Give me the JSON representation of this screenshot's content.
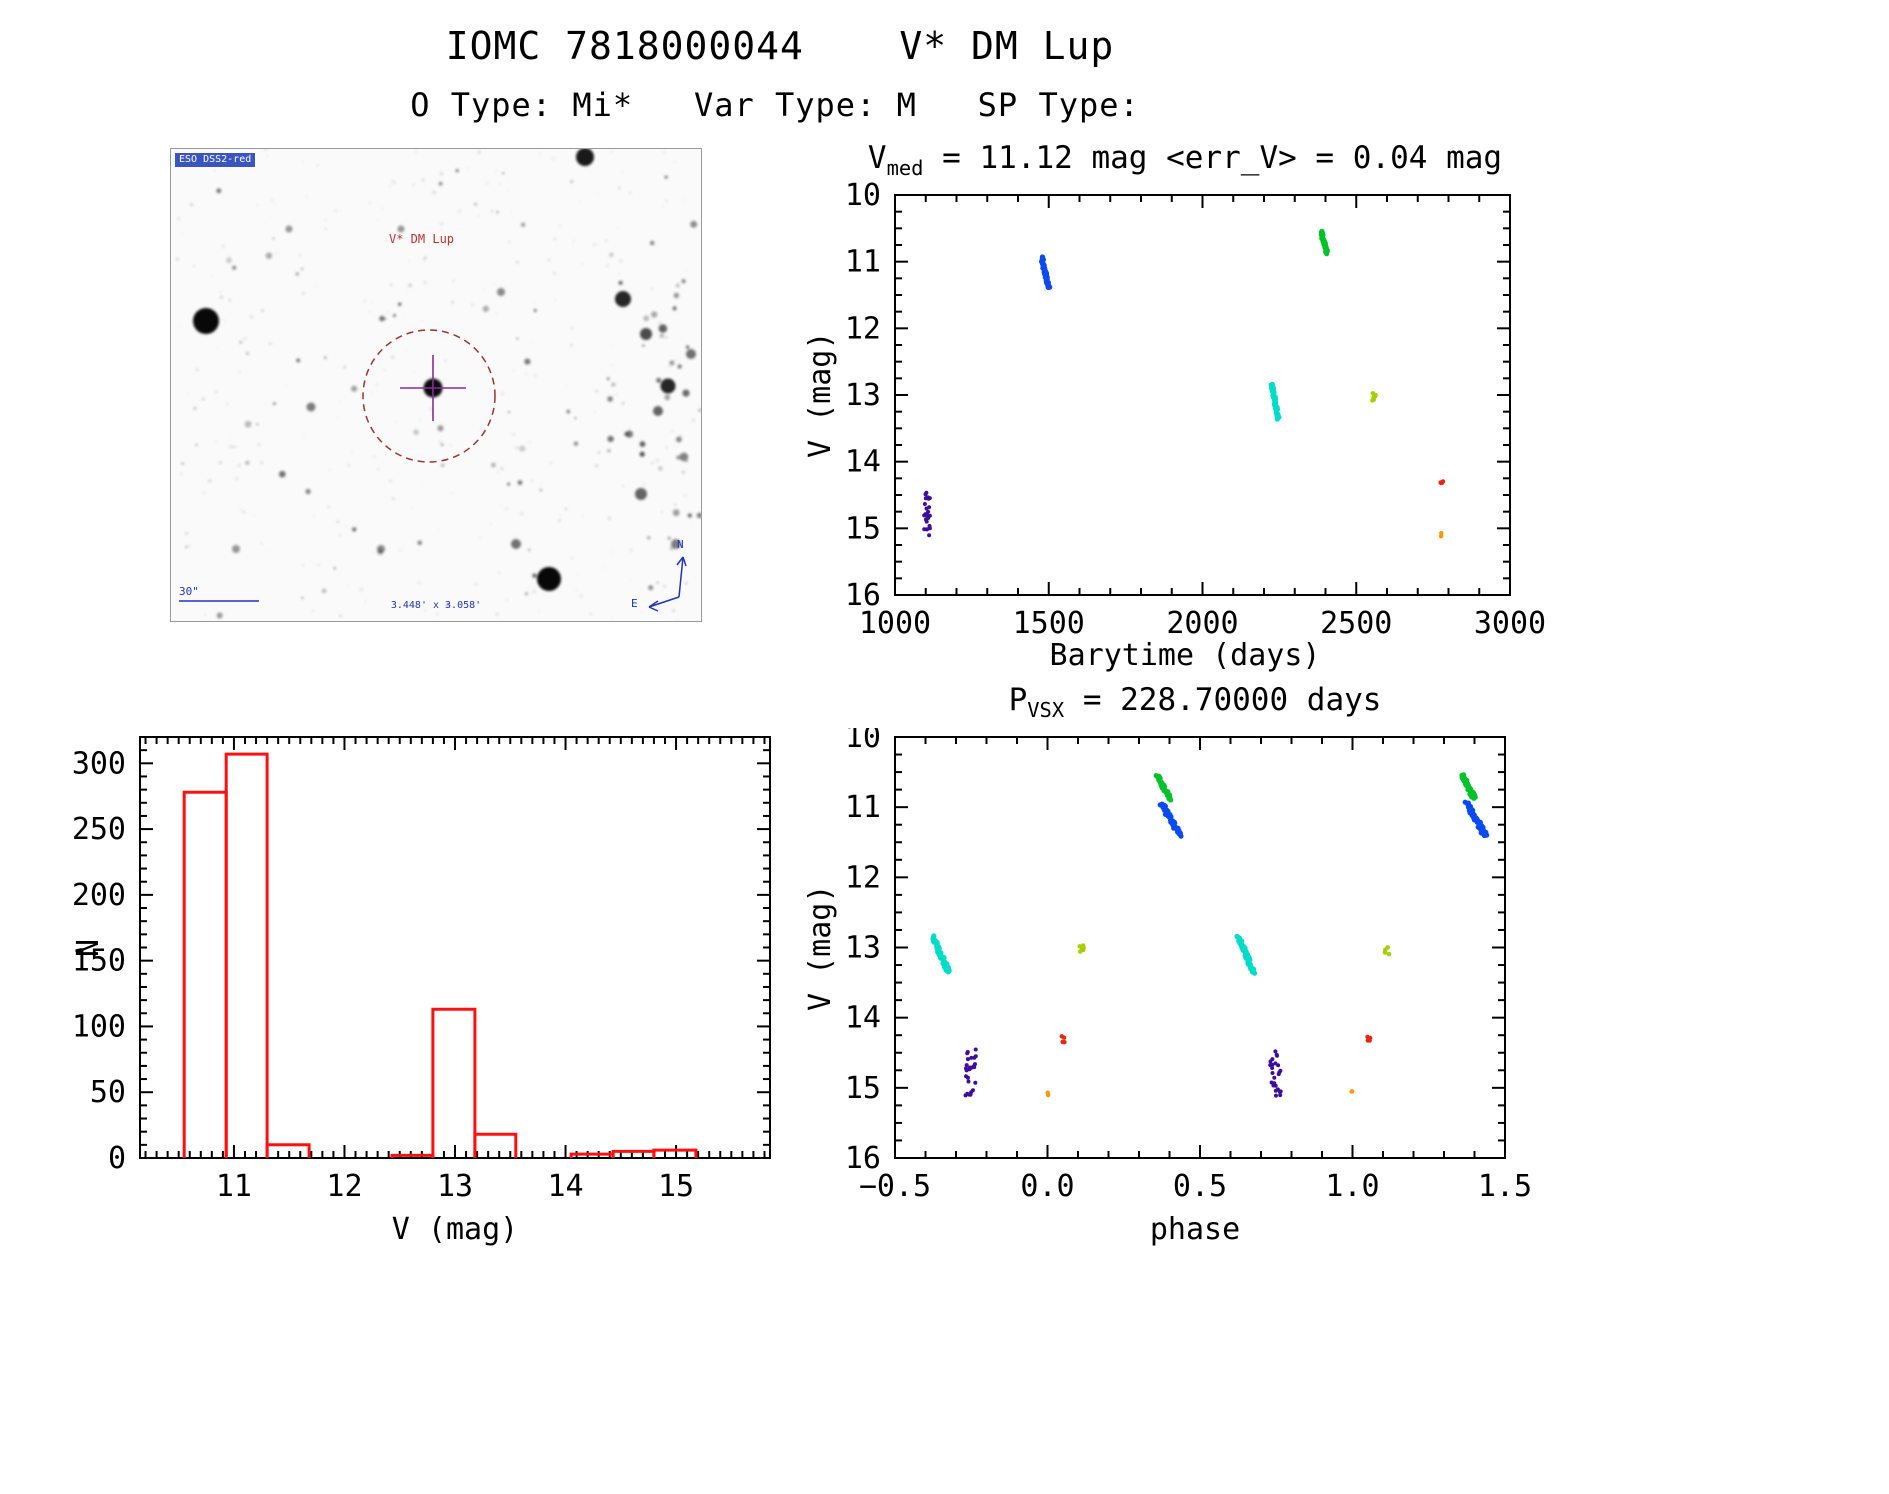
{
  "header": {
    "title": "IOMC 7818000044    V* DM Lup",
    "subtitle": "O Type: Mi*   Var Type: M   SP Type:"
  },
  "sky_image": {
    "survey_label": "ESO DSS2-red",
    "target_label": "V* DM Lup",
    "scale_label": "30\"",
    "fov_label": "3.448' x 3.058'",
    "compass_north": "N",
    "compass_east": "E"
  },
  "chart_data": [
    {
      "id": "lightcurve",
      "type": "scatter",
      "v_med_mag": 11.12,
      "err_v_mag": 0.04,
      "title_parts": [
        {
          "t": "V"
        },
        {
          "t": "med",
          "sub": true
        },
        {
          "t": " = 11.12 mag <err_V> = 0.04 mag"
        }
      ],
      "xlabel": "Barytime (days)",
      "ylabel": "V (mag)",
      "xlim": [
        1000,
        3000
      ],
      "ylim": [
        16,
        10
      ],
      "xticks": [
        1000,
        1500,
        2000,
        2500,
        3000
      ],
      "xtick_labels": [
        "1000",
        "1500",
        "2000",
        "2500",
        "3000"
      ],
      "yticks": [
        10,
        11,
        12,
        13,
        14,
        15,
        16
      ],
      "ytick_labels": [
        "10",
        "11",
        "12",
        "13",
        "14",
        "15",
        "16"
      ],
      "xminor": 100,
      "yminor": 0.25,
      "clusters": [
        {
          "label": "epoch-1-violet",
          "color": "#3d0e9b",
          "mode": "scatter",
          "x": [
            1093,
            1117
          ],
          "v": [
            14.45,
            15.12
          ],
          "n": 26,
          "dot": 2.0
        },
        {
          "label": "epoch-2-blue",
          "color": "#0b4bee",
          "mode": "streak",
          "x": [
            1478,
            1500
          ],
          "v": [
            10.95,
            11.4
          ],
          "n": 60,
          "dot": 2.6,
          "jx": 7,
          "jv": 0.05
        },
        {
          "label": "epoch-3-cyan",
          "color": "#00dcc8",
          "mode": "streak",
          "x": [
            2226,
            2246
          ],
          "v": [
            12.85,
            13.35
          ],
          "n": 55,
          "dot": 2.6,
          "jx": 6,
          "jv": 0.05
        },
        {
          "label": "epoch-4-green",
          "color": "#00c32a",
          "mode": "streak",
          "x": [
            2386,
            2406
          ],
          "v": [
            10.55,
            10.88
          ],
          "n": 45,
          "dot": 2.6,
          "jx": 6,
          "jv": 0.05
        },
        {
          "label": "epoch-5-ygreen",
          "color": "#a6cf00",
          "mode": "scatter",
          "x": [
            2552,
            2564
          ],
          "v": [
            12.97,
            13.1
          ],
          "n": 7,
          "dot": 2.2
        },
        {
          "label": "epoch-6-red",
          "color": "#e8250f",
          "mode": "scatter",
          "x": [
            2770,
            2784
          ],
          "v": [
            14.25,
            14.35
          ],
          "n": 4,
          "dot": 2.2
        },
        {
          "label": "epoch-7-orange",
          "color": "#ff9800",
          "mode": "scatter",
          "x": [
            2772,
            2782
          ],
          "v": [
            15.04,
            15.12
          ],
          "n": 2,
          "dot": 2.2
        }
      ]
    },
    {
      "id": "histogram",
      "type": "bar",
      "xlabel": "V (mag)",
      "ylabel": "N",
      "xlim": [
        10.15,
        15.85
      ],
      "ylim": [
        0,
        320
      ],
      "xticks": [
        11,
        12,
        13,
        14,
        15
      ],
      "xtick_labels": [
        "11",
        "12",
        "13",
        "14",
        "15"
      ],
      "yticks": [
        0,
        50,
        100,
        150,
        200,
        250,
        300
      ],
      "ytick_labels": [
        "0",
        "50",
        "100",
        "150",
        "200",
        "250",
        "300"
      ],
      "xminor": 0.1,
      "yminor": 10,
      "bar_color": "#ff1010",
      "bars": [
        {
          "x0": 10.55,
          "x1": 10.93,
          "n": 278
        },
        {
          "x0": 10.93,
          "x1": 11.3,
          "n": 307
        },
        {
          "x0": 11.3,
          "x1": 11.68,
          "n": 10
        },
        {
          "x0": 12.43,
          "x1": 12.8,
          "n": 2
        },
        {
          "x0": 12.8,
          "x1": 13.18,
          "n": 113
        },
        {
          "x0": 13.18,
          "x1": 13.55,
          "n": 18
        },
        {
          "x0": 14.05,
          "x1": 14.43,
          "n": 3
        },
        {
          "x0": 14.43,
          "x1": 14.8,
          "n": 5
        },
        {
          "x0": 14.8,
          "x1": 15.18,
          "n": 6
        }
      ]
    },
    {
      "id": "phase-folded",
      "type": "scatter",
      "period_days": 228.7,
      "title_parts": [
        {
          "t": "P"
        },
        {
          "t": "VSX",
          "sub": true
        },
        {
          "t": " = 228.70000 days"
        }
      ],
      "xlabel": "phase",
      "ylabel": "V (mag)",
      "xlim": [
        -0.5,
        1.5
      ],
      "ylim": [
        16,
        10
      ],
      "xticks": [
        -0.5,
        0,
        0.5,
        1,
        1.5
      ],
      "xtick_labels": [
        "−0.5",
        "0.0",
        "0.5",
        "1.0",
        "1.5"
      ],
      "yticks": [
        10,
        11,
        12,
        13,
        14,
        15,
        16
      ],
      "ytick_labels": [
        "10",
        "11",
        "12",
        "13",
        "14",
        "15",
        "16"
      ],
      "xminor": 0.1,
      "yminor": 0.25,
      "clusters": [
        {
          "label": "cyan-cycle1",
          "color": "#00dcc8",
          "mode": "streak",
          "x": [
            -0.375,
            -0.325
          ],
          "v": [
            12.85,
            13.35
          ],
          "n": 55,
          "dot": 2.6,
          "jx": 0.012,
          "jv": 0.05
        },
        {
          "label": "violet-cycle1",
          "color": "#3d0e9b",
          "mode": "scatter",
          "x": [
            -0.27,
            -0.235
          ],
          "v": [
            14.45,
            15.12
          ],
          "n": 26,
          "dot": 2.0
        },
        {
          "label": "orange-cycle1",
          "color": "#ff9800",
          "mode": "scatter",
          "x": [
            -0.005,
            0.005
          ],
          "v": [
            15.04,
            15.12
          ],
          "n": 2,
          "dot": 2.2
        },
        {
          "label": "red-cycle1",
          "color": "#e8250f",
          "mode": "scatter",
          "x": [
            0.045,
            0.06
          ],
          "v": [
            14.25,
            14.35
          ],
          "n": 4,
          "dot": 2.2
        },
        {
          "label": "ygreen-cycle1",
          "color": "#a6cf00",
          "mode": "scatter",
          "x": [
            0.105,
            0.12
          ],
          "v": [
            12.97,
            13.1
          ],
          "n": 7,
          "dot": 2.2
        },
        {
          "label": "green-cycle1",
          "color": "#00c32a",
          "mode": "streak",
          "x": [
            0.36,
            0.4
          ],
          "v": [
            10.55,
            10.88
          ],
          "n": 45,
          "dot": 2.6,
          "jx": 0.01,
          "jv": 0.05
        },
        {
          "label": "blue-cycle1",
          "color": "#0b4bee",
          "mode": "streak",
          "x": [
            0.375,
            0.435
          ],
          "v": [
            10.95,
            11.4
          ],
          "n": 60,
          "dot": 2.6,
          "jx": 0.012,
          "jv": 0.05
        },
        {
          "label": "cyan-cycle2",
          "color": "#00dcc8",
          "mode": "streak",
          "x": [
            0.625,
            0.675
          ],
          "v": [
            12.85,
            13.35
          ],
          "n": 55,
          "dot": 2.6,
          "jx": 0.012,
          "jv": 0.05
        },
        {
          "label": "violet-cycle2",
          "color": "#3d0e9b",
          "mode": "scatter",
          "x": [
            0.73,
            0.765
          ],
          "v": [
            14.45,
            15.12
          ],
          "n": 26,
          "dot": 2.0
        },
        {
          "label": "orange-cycle2",
          "color": "#ff9800",
          "mode": "scatter",
          "x": [
            0.995,
            1.005
          ],
          "v": [
            15.04,
            15.12
          ],
          "n": 2,
          "dot": 2.2
        },
        {
          "label": "red-cycle2",
          "color": "#e8250f",
          "mode": "scatter",
          "x": [
            1.045,
            1.06
          ],
          "v": [
            14.25,
            14.35
          ],
          "n": 4,
          "dot": 2.2
        },
        {
          "label": "ygreen-cycle2",
          "color": "#a6cf00",
          "mode": "scatter",
          "x": [
            1.105,
            1.12
          ],
          "v": [
            12.97,
            13.1
          ],
          "n": 7,
          "dot": 2.2
        },
        {
          "label": "green-cycle2",
          "color": "#00c32a",
          "mode": "streak",
          "x": [
            1.36,
            1.4
          ],
          "v": [
            10.55,
            10.88
          ],
          "n": 45,
          "dot": 2.6,
          "jx": 0.01,
          "jv": 0.05
        },
        {
          "label": "blue-cycle2",
          "color": "#0b4bee",
          "mode": "streak",
          "x": [
            1.375,
            1.435
          ],
          "v": [
            10.95,
            11.4
          ],
          "n": 60,
          "dot": 2.6,
          "jx": 0.012,
          "jv": 0.05
        }
      ]
    }
  ]
}
